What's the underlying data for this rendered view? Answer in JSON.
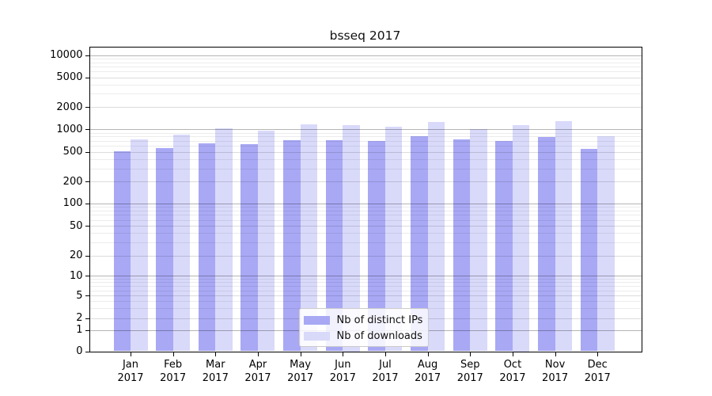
{
  "figure": {
    "title": "bsseq 2017"
  },
  "chart_data": {
    "type": "bar",
    "title": "bsseq 2017",
    "categories": [
      "Jan 2017",
      "Feb 2017",
      "Mar 2017",
      "Apr 2017",
      "May 2017",
      "Jun 2017",
      "Jul 2017",
      "Aug 2017",
      "Sep 2017",
      "Oct 2017",
      "Nov 2017",
      "Dec 2017"
    ],
    "series": [
      {
        "name": "Nb of distinct IPs",
        "color": "#a8a8f5",
        "values": [
          510,
          555,
          645,
          635,
          720,
          715,
          700,
          800,
          725,
          705,
          780,
          550
        ]
      },
      {
        "name": "Nb of downloads",
        "color": "#d9d9fa",
        "values": [
          730,
          840,
          1030,
          960,
          1175,
          1150,
          1085,
          1265,
          1015,
          1150,
          1290,
          805
        ]
      }
    ],
    "xlabel": "",
    "ylabel": "",
    "yscale": "log",
    "yticks": [
      0,
      1,
      2,
      5,
      10,
      20,
      50,
      100,
      200,
      500,
      1000,
      2000,
      5000,
      10000
    ],
    "ylim": [
      0,
      13000
    ],
    "grid": true,
    "legend_position": "inside-bottom-center"
  },
  "colors": {
    "grid_major": "#b4b4b4",
    "grid_sub": "#dcdcdc",
    "grid_minor": "#ececec",
    "spine": "#000000",
    "background": "#ffffff"
  }
}
